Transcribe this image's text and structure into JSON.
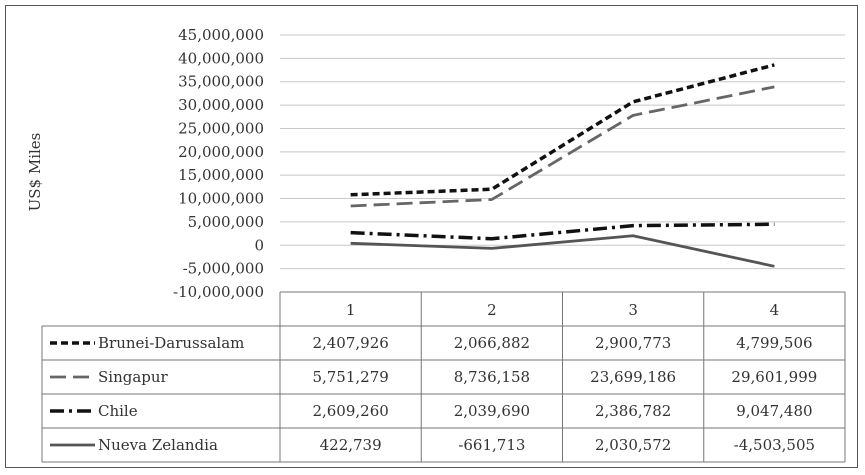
{
  "chart_data": {
    "type": "line",
    "title": "",
    "xlabel": "",
    "ylabel": "US$ Miles",
    "categories": [
      "1",
      "2",
      "3",
      "4"
    ],
    "ylim": [
      -10000000,
      45000000
    ],
    "ytick_labels": [
      "45,000,000",
      "40,000,000",
      "35,000,000",
      "30,000,000",
      "25,000,000",
      "20,000,000",
      "15,000,000",
      "10,000,000",
      "5,000,000",
      "0",
      "-5,000,000",
      "-10,000,000"
    ],
    "grid": true,
    "legend_placement": "data-table",
    "series": [
      {
        "name": "Brunei-Darussalam",
        "plotted": [
          10800000,
          12000000,
          30700000,
          38600000
        ],
        "table": [
          "2,407,926",
          "2,066,882",
          "2,900,773",
          "4,799,506"
        ],
        "color": "#111111",
        "dash": "short-dash"
      },
      {
        "name": "Singapur",
        "plotted": [
          8400000,
          9800000,
          27800000,
          33900000
        ],
        "table": [
          "5,751,279",
          "8,736,158",
          "23,699,186",
          "29,601,999"
        ],
        "color": "#666666",
        "dash": "long-dash"
      },
      {
        "name": "Chile",
        "plotted": [
          2700000,
          1400000,
          4200000,
          4500000
        ],
        "table": [
          "2,609,260",
          "2,039,690",
          "2,386,782",
          "9,047,480"
        ],
        "color": "#111111",
        "dash": "dash-dot"
      },
      {
        "name": "Nueva Zelandia",
        "plotted": [
          422739,
          -661713,
          2030572,
          -4503505
        ],
        "table": [
          "422,739",
          "-661,713",
          "2,030,572",
          "-4,503,505"
        ],
        "color": "#555555",
        "dash": "solid"
      }
    ]
  }
}
